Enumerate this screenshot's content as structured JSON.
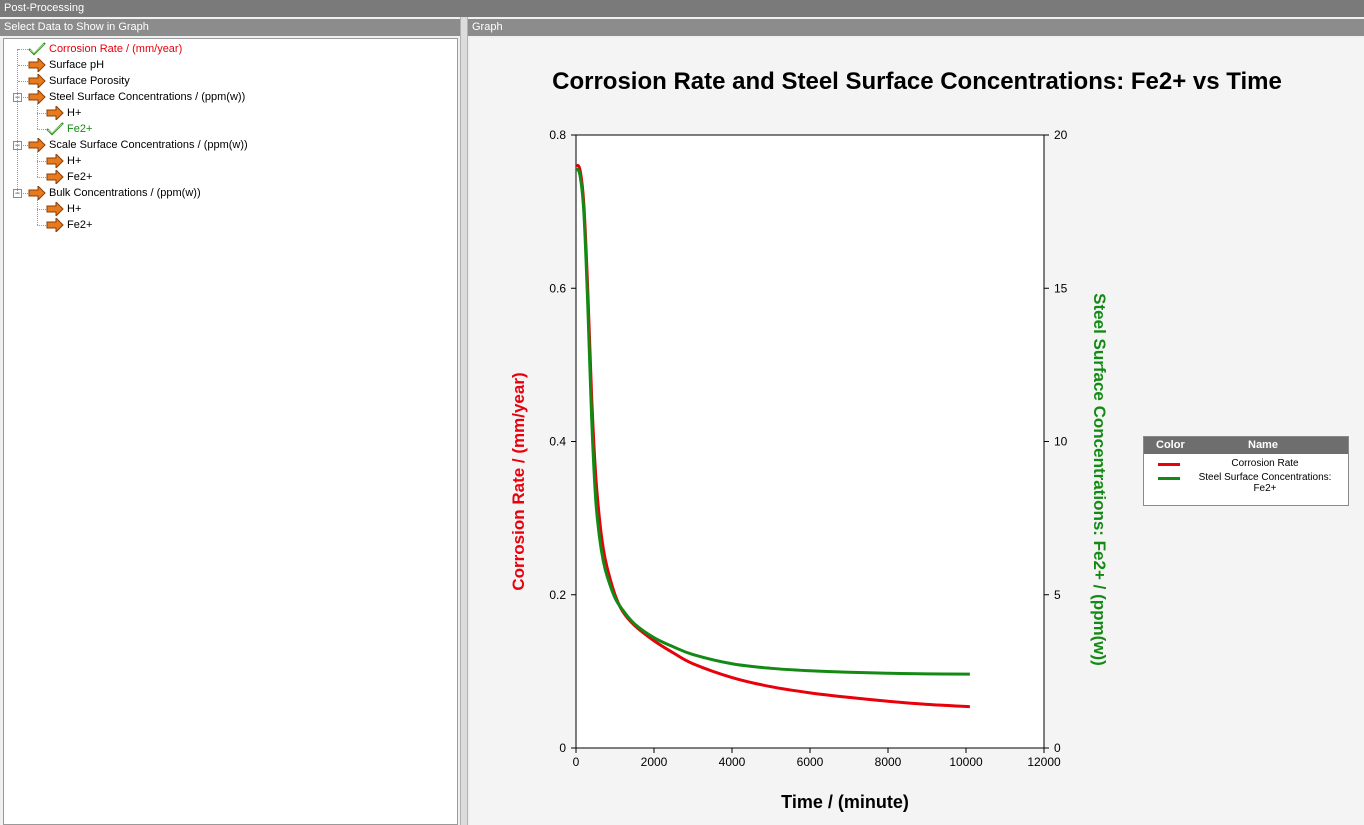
{
  "window": {
    "title": "Post-Processing"
  },
  "left_pane": {
    "header": "Select Data to Show in Graph"
  },
  "right_pane": {
    "header": "Graph"
  },
  "tree": [
    {
      "label": "Corrosion Rate / (mm/year)",
      "checked": true,
      "level": 0,
      "color": "#e8000b"
    },
    {
      "label": "Surface pH",
      "checked": false,
      "level": 0,
      "color": "#000000"
    },
    {
      "label": "Surface Porosity",
      "checked": false,
      "level": 0,
      "color": "#000000"
    },
    {
      "label": "Steel Surface Concentrations / (ppm(w))",
      "checked": false,
      "level": 0,
      "expander": "−",
      "color": "#000000"
    },
    {
      "label": "H+",
      "checked": false,
      "level": 1,
      "color": "#000000"
    },
    {
      "label": "Fe2+",
      "checked": true,
      "level": 1,
      "color": "#138a13"
    },
    {
      "label": "Scale Surface Concentrations / (ppm(w))",
      "checked": false,
      "level": 0,
      "expander": "−",
      "color": "#000000"
    },
    {
      "label": "H+",
      "checked": false,
      "level": 1,
      "color": "#000000"
    },
    {
      "label": "Fe2+",
      "checked": false,
      "level": 1,
      "color": "#000000"
    },
    {
      "label": "Bulk Concentrations / (ppm(w))",
      "checked": false,
      "level": 0,
      "expander": "−",
      "color": "#000000"
    },
    {
      "label": "H+",
      "checked": false,
      "level": 1,
      "color": "#000000"
    },
    {
      "label": "Fe2+",
      "checked": false,
      "level": 1,
      "color": "#000000"
    }
  ],
  "chart_data": {
    "type": "line",
    "title": "Corrosion Rate and Steel Surface Concentrations: Fe2+ vs Time",
    "xlabel": "Time / (minute)",
    "ylabel": "Corrosion Rate / (mm/year)",
    "y2label": "Steel Surface Concentrations: Fe2+ / (ppm(w))",
    "xlim": [
      0,
      12000
    ],
    "ylim": [
      0,
      0.8
    ],
    "y2lim": [
      0,
      20
    ],
    "xticks": [
      "0",
      "2000",
      "4000",
      "6000",
      "8000",
      "10000",
      "12000"
    ],
    "yticks": [
      "0",
      "0.2",
      "0.4",
      "0.6",
      "0.8"
    ],
    "y2ticks": [
      "0",
      "5",
      "10",
      "15",
      "20"
    ],
    "grid": false,
    "legend_position": "right",
    "series": [
      {
        "name": "Corrosion Rate",
        "axis": "left",
        "color": "#e8000b",
        "x": [
          0,
          100,
          200,
          300,
          400,
          500,
          600,
          700,
          800,
          1000,
          1200,
          1500,
          2000,
          2500,
          3000,
          4000,
          5000,
          6000,
          7000,
          8000,
          9000,
          10100
        ],
        "y": [
          0.76,
          0.755,
          0.71,
          0.6,
          0.46,
          0.36,
          0.3,
          0.26,
          0.235,
          0.2,
          0.178,
          0.16,
          0.14,
          0.124,
          0.11,
          0.092,
          0.08,
          0.072,
          0.066,
          0.061,
          0.057,
          0.054
        ]
      },
      {
        "name": "Steel Surface Concentrations: Fe2+",
        "axis": "right",
        "color": "#138a13",
        "x": [
          0,
          100,
          200,
          300,
          400,
          500,
          600,
          700,
          800,
          1000,
          1200,
          1500,
          2000,
          2500,
          3000,
          4000,
          5000,
          6000,
          7000,
          8000,
          9000,
          10100
        ],
        "y": [
          18.9,
          18.7,
          17.5,
          14.5,
          10.8,
          8.2,
          6.9,
          6.1,
          5.6,
          4.9,
          4.5,
          4.05,
          3.6,
          3.3,
          3.05,
          2.75,
          2.6,
          2.52,
          2.47,
          2.44,
          2.42,
          2.41
        ]
      }
    ]
  },
  "legend": {
    "col_color": "Color",
    "col_name": "Name",
    "items": [
      {
        "name": "Corrosion Rate",
        "color": "#e8000b"
      },
      {
        "name": "Steel Surface Concentrations: Fe2+",
        "color": "#138a13"
      }
    ]
  }
}
